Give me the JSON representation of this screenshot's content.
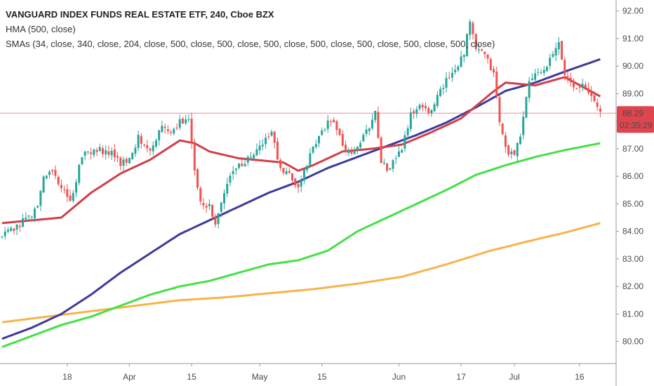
{
  "header": {
    "title": "VANGUARD INDEX FUNDS REAL ESTATE ETF, 240, Cboe BZX",
    "indicator_1": "HMA (500, close)",
    "indicator_2": "SMAs (34, close, 340, close, 204, close, 500, close, 500, close, 500, close, 500, close, 500, close, 500, close, 500, close)"
  },
  "price_badge": {
    "price": "88.29",
    "countdown": "02:35:29",
    "color": "#e0454f"
  },
  "colors": {
    "up": "#26a69a",
    "down": "#ef5350",
    "sma_red": "#d13f48",
    "sma_navy": "#3d3a9b",
    "sma_green": "#45e046",
    "sma_orange": "#f8b34b"
  },
  "chart_data": {
    "type": "candlestick",
    "ylim": [
      79.2,
      92.4
    ],
    "yticks": [
      80,
      81,
      82,
      83,
      84,
      85,
      86,
      87,
      88,
      89,
      90,
      91,
      92
    ],
    "ytick_labels": [
      "80.00",
      "81.00",
      "82.00",
      "83.00",
      "84.00",
      "85.00",
      "86.00",
      "87.00",
      "88.00",
      "89.00",
      "90.00",
      "91.00",
      "92.00"
    ],
    "last_price": 88.29,
    "xlabels": [
      "18",
      "Apr",
      "15",
      "May",
      "15",
      "Jun",
      "17",
      "Jul",
      "16"
    ],
    "xlabel_bars": [
      22,
      43,
      64,
      87,
      108,
      134,
      155,
      173,
      195
    ],
    "n_bars": 203,
    "ohlc_keypoints": [
      [
        0,
        83.8
      ],
      [
        10,
        84.6
      ],
      [
        12,
        84.9
      ],
      [
        14,
        86.0
      ],
      [
        17,
        86.2
      ],
      [
        20,
        85.6
      ],
      [
        23,
        85.0
      ],
      [
        27,
        86.8
      ],
      [
        32,
        87.0
      ],
      [
        37,
        86.8
      ],
      [
        40,
        86.5
      ],
      [
        43,
        86.6
      ],
      [
        46,
        87.4
      ],
      [
        50,
        87.0
      ],
      [
        54,
        87.8
      ],
      [
        58,
        87.6
      ],
      [
        60,
        88.0
      ],
      [
        63,
        88.0
      ],
      [
        65,
        86.3
      ],
      [
        67,
        85.1
      ],
      [
        70,
        84.9
      ],
      [
        72,
        84.2
      ],
      [
        75,
        85.4
      ],
      [
        78,
        86.3
      ],
      [
        82,
        86.5
      ],
      [
        85,
        86.8
      ],
      [
        88,
        87.2
      ],
      [
        91,
        87.6
      ],
      [
        94,
        86.2
      ],
      [
        97,
        86.0
      ],
      [
        100,
        85.6
      ],
      [
        103,
        86.5
      ],
      [
        106,
        87.2
      ],
      [
        110,
        88.0
      ],
      [
        113,
        87.8
      ],
      [
        116,
        86.8
      ],
      [
        119,
        86.9
      ],
      [
        123,
        87.6
      ],
      [
        126,
        88.3
      ],
      [
        128,
        86.6
      ],
      [
        130,
        86.2
      ],
      [
        132,
        86.5
      ],
      [
        135,
        87.0
      ],
      [
        138,
        88.2
      ],
      [
        141,
        88.6
      ],
      [
        144,
        88.3
      ],
      [
        146,
        88.7
      ],
      [
        150,
        89.5
      ],
      [
        153,
        89.9
      ],
      [
        156,
        90.5
      ],
      [
        158,
        91.6
      ],
      [
        160,
        90.6
      ],
      [
        163,
        90.4
      ],
      [
        166,
        89.7
      ],
      [
        168,
        88.0
      ],
      [
        170,
        87.0
      ],
      [
        173,
        86.7
      ],
      [
        175,
        87.5
      ],
      [
        178,
        89.5
      ],
      [
        181,
        89.7
      ],
      [
        184,
        90.0
      ],
      [
        188,
        90.8
      ],
      [
        190,
        89.7
      ],
      [
        193,
        89.3
      ],
      [
        196,
        89.3
      ],
      [
        198,
        89.0
      ],
      [
        201,
        88.6
      ],
      [
        202,
        88.3
      ]
    ],
    "series": [
      {
        "label": "SMA 34",
        "color": "#d13f48",
        "points": [
          [
            0,
            84.3
          ],
          [
            10,
            84.4
          ],
          [
            20,
            84.5
          ],
          [
            30,
            85.4
          ],
          [
            40,
            86.1
          ],
          [
            50,
            86.6
          ],
          [
            60,
            87.3
          ],
          [
            65,
            87.2
          ],
          [
            70,
            86.9
          ],
          [
            80,
            86.65
          ],
          [
            90,
            86.55
          ],
          [
            95,
            86.5
          ],
          [
            100,
            86.2
          ],
          [
            105,
            86.4
          ],
          [
            115,
            86.9
          ],
          [
            125,
            87.0
          ],
          [
            135,
            87.15
          ],
          [
            145,
            87.6
          ],
          [
            155,
            88.1
          ],
          [
            165,
            89.0
          ],
          [
            170,
            89.4
          ],
          [
            180,
            89.3
          ],
          [
            190,
            89.6
          ],
          [
            202,
            88.9
          ]
        ]
      },
      {
        "label": "SMA 340",
        "color": "#3d3a9b",
        "points": [
          [
            0,
            80.1
          ],
          [
            10,
            80.5
          ],
          [
            20,
            81.0
          ],
          [
            30,
            81.7
          ],
          [
            40,
            82.5
          ],
          [
            50,
            83.2
          ],
          [
            60,
            83.9
          ],
          [
            70,
            84.4
          ],
          [
            80,
            84.9
          ],
          [
            90,
            85.4
          ],
          [
            100,
            85.8
          ],
          [
            110,
            86.3
          ],
          [
            120,
            86.7
          ],
          [
            130,
            87.1
          ],
          [
            140,
            87.5
          ],
          [
            150,
            87.95
          ],
          [
            160,
            88.5
          ],
          [
            170,
            89.1
          ],
          [
            180,
            89.4
          ],
          [
            190,
            89.8
          ],
          [
            202,
            90.25
          ]
        ]
      },
      {
        "label": "SMA 204",
        "color": "#45e046",
        "points": [
          [
            0,
            79.8
          ],
          [
            10,
            80.2
          ],
          [
            20,
            80.6
          ],
          [
            30,
            80.9
          ],
          [
            40,
            81.3
          ],
          [
            50,
            81.7
          ],
          [
            60,
            82.0
          ],
          [
            70,
            82.2
          ],
          [
            80,
            82.5
          ],
          [
            90,
            82.8
          ],
          [
            100,
            82.95
          ],
          [
            110,
            83.3
          ],
          [
            120,
            84.0
          ],
          [
            130,
            84.5
          ],
          [
            140,
            85.0
          ],
          [
            150,
            85.5
          ],
          [
            160,
            86.05
          ],
          [
            170,
            86.4
          ],
          [
            180,
            86.7
          ],
          [
            190,
            86.95
          ],
          [
            202,
            87.2
          ]
        ]
      },
      {
        "label": "SMA 500",
        "color": "#f8b34b",
        "points": [
          [
            0,
            80.7
          ],
          [
            15,
            80.9
          ],
          [
            30,
            81.1
          ],
          [
            45,
            81.3
          ],
          [
            60,
            81.5
          ],
          [
            75,
            81.6
          ],
          [
            90,
            81.75
          ],
          [
            105,
            81.9
          ],
          [
            120,
            82.1
          ],
          [
            135,
            82.35
          ],
          [
            150,
            82.8
          ],
          [
            165,
            83.3
          ],
          [
            180,
            83.7
          ],
          [
            190,
            83.95
          ],
          [
            202,
            84.3
          ]
        ]
      }
    ]
  }
}
